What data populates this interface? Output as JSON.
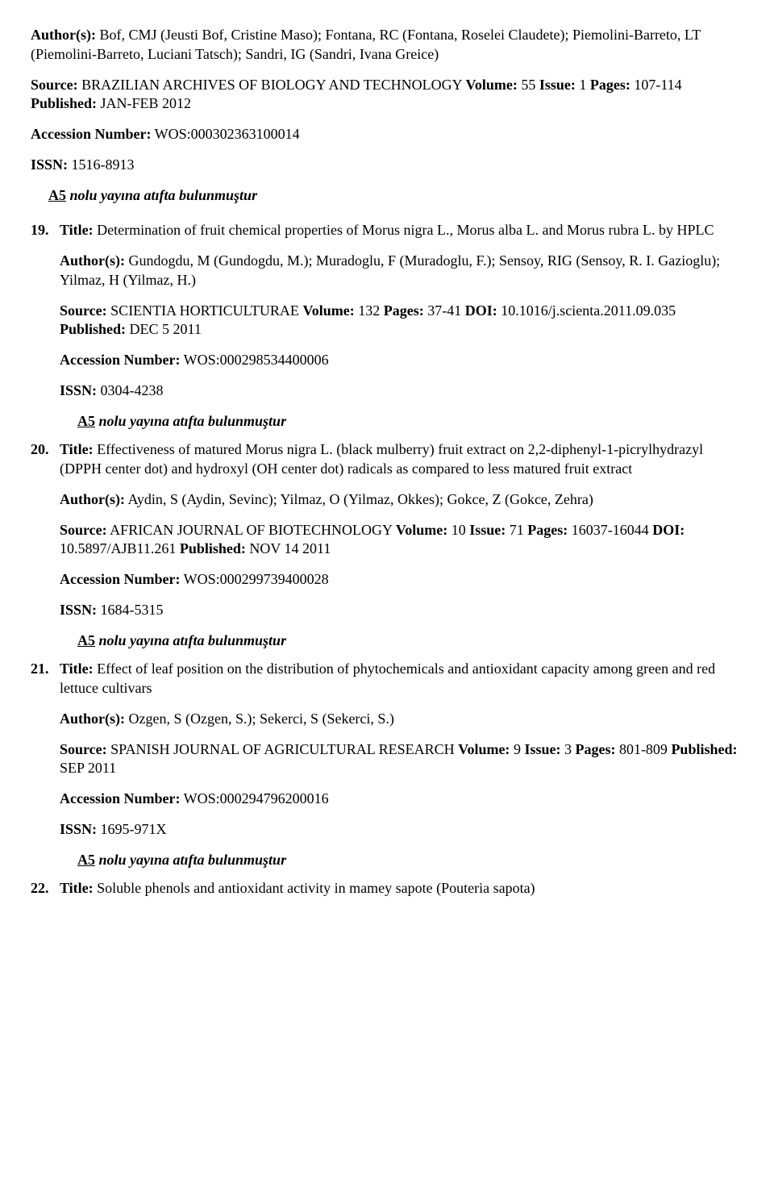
{
  "labels": {
    "authors": "Author(s):",
    "source": "Source:",
    "volume": "Volume:",
    "issue": "Issue:",
    "pages": "Pages:",
    "published": "Published:",
    "doi": "DOI:",
    "accession": "Accession Number:",
    "issn": "ISSN:",
    "title": "Title:"
  },
  "citeNote": {
    "code": "A5",
    "rest": " nolu yayına atıfta bulunmuştur"
  },
  "top": {
    "authors": " Bof, CMJ (Jeusti Bof, Cristine Maso); Fontana, RC (Fontana, Roselei Claudete); Piemolini-Barreto, LT (Piemolini-Barreto, Luciani Tatsch); Sandri, IG (Sandri, Ivana Greice)",
    "sourceName": " BRAZILIAN ARCHIVES OF BIOLOGY AND TECHNOLOGY  ",
    "volume": " 55  ",
    "issue": " 1  ",
    "pages": " 107-114  ",
    "published": " JAN-FEB 2012",
    "accession": " WOS:000302363100014",
    "issn": " 1516-8913"
  },
  "e19": {
    "num": "19.",
    "title": " Determination of fruit chemical properties of Morus nigra L., Morus alba L. and Morus rubra L. by HPLC",
    "authors": " Gundogdu, M (Gundogdu, M.); Muradoglu, F (Muradoglu, F.); Sensoy, RIG (Sensoy, R. I. Gazioglu); Yilmaz, H (Yilmaz, H.)",
    "sourceName": " SCIENTIA HORTICULTURAE  ",
    "volume": " 132  ",
    "pages": " 37-41  ",
    "doi": " 10.1016/j.scienta.2011.09.035  ",
    "published": " DEC 5 2011",
    "accession": " WOS:000298534400006",
    "issn": " 0304-4238"
  },
  "e20": {
    "num": "20.",
    "title": " Effectiveness of matured Morus nigra L. (black mulberry) fruit extract on 2,2-diphenyl-1-picrylhydrazyl (DPPH center dot) and hydroxyl (OH center dot) radicals as compared to less matured fruit extract",
    "authors": " Aydin, S (Aydin, Sevinc); Yilmaz, O (Yilmaz, Okkes); Gokce, Z (Gokce, Zehra)",
    "sourceName": " AFRICAN JOURNAL OF BIOTECHNOLOGY  ",
    "volume": " 10  ",
    "issue": " 71  ",
    "pages": " 16037-16044  ",
    "doi": " 10.5897/AJB11.261  ",
    "published": " NOV 14 2011",
    "accession": " WOS:000299739400028",
    "issn": " 1684-5315"
  },
  "e21": {
    "num": "21.",
    "title": " Effect of leaf position on the distribution of phytochemicals and antioxidant capacity among green and red lettuce cultivars",
    "authors": " Ozgen, S (Ozgen, S.); Sekerci, S (Sekerci, S.)",
    "sourceName": " SPANISH JOURNAL OF AGRICULTURAL RESEARCH  ",
    "volume": " 9  ",
    "issue": " 3  ",
    "pages": " 801-809  ",
    "published": " SEP 2011",
    "accession": " WOS:000294796200016",
    "issn": " 1695-971X"
  },
  "e22": {
    "num": "22.",
    "title": " Soluble phenols and antioxidant activity in mamey sapote (Pouteria sapota)"
  }
}
